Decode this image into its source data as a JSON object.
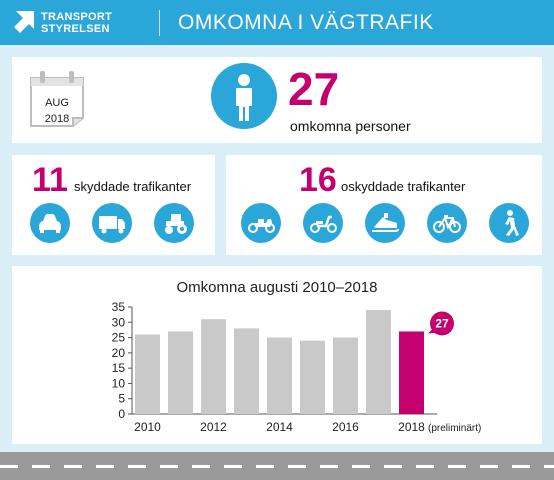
{
  "header": {
    "logo_line1": "TRANSPORT",
    "logo_line2": "STYRELSEN",
    "title": "OMKOMNA I VÄGTRAFIK"
  },
  "summary": {
    "month": "AUG",
    "year": "2018",
    "total": "27",
    "total_label": "omkomna personer"
  },
  "protected": {
    "count": "11",
    "label": "skyddade trafikanter",
    "icons": [
      "car-icon",
      "truck-icon",
      "tractor-icon"
    ]
  },
  "unprotected": {
    "count": "16",
    "label": "oskyddade trafikanter",
    "icons": [
      "motorcycle-icon",
      "moped-icon",
      "snowmobile-icon",
      "bicycle-icon",
      "pedestrian-icon"
    ]
  },
  "colors": {
    "accent": "#2aa6d9",
    "highlight": "#c5006e",
    "bar": "#c9c9c9",
    "background": "#d9eef6"
  },
  "chart_data": {
    "type": "bar",
    "title": "Omkomna augusti 2010–2018",
    "categories": [
      "2010",
      "2011",
      "2012",
      "2013",
      "2014",
      "2015",
      "2016",
      "2017",
      "2018"
    ],
    "values": [
      26,
      27,
      31,
      28,
      25,
      24,
      25,
      34,
      27
    ],
    "highlight_index": 8,
    "highlight_callout": "27",
    "xtick_labels": [
      "2010",
      "",
      "2012",
      "",
      "2014",
      "",
      "2016",
      "",
      "2018"
    ],
    "xtick_note": "(preliminärt)",
    "ylim": [
      0,
      35
    ],
    "yticks": [
      0,
      5,
      10,
      15,
      20,
      25,
      30,
      35
    ],
    "grid": false
  }
}
